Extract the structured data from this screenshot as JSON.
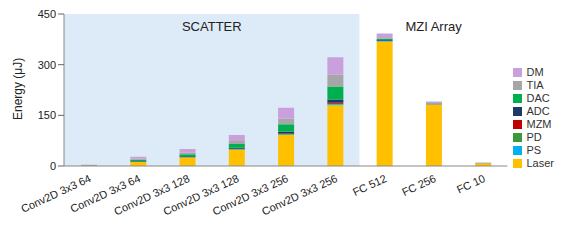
{
  "chart_data": {
    "type": "bar",
    "stacked": true,
    "ylabel": "Energy (μJ)",
    "categories": [
      "Conv2D 3x3 64",
      "Conv2D 3x3 64",
      "Conv2D 3x3 128",
      "Conv2D 3x3 128",
      "Conv2D 3x3 256",
      "Conv2D 3x3 256",
      "FC 512",
      "FC 256",
      "FC 10"
    ],
    "ylim": [
      0,
      450
    ],
    "yticks": [
      0,
      150,
      300,
      450
    ],
    "grid": false,
    "legend": "right",
    "regions": [
      {
        "label": "SCATTER",
        "from": 0,
        "to": 5,
        "color": "#dcebf7"
      },
      {
        "label": "MZI Array",
        "from": 6,
        "to": 8,
        "color": "#ffffff"
      }
    ],
    "series": [
      {
        "name": "Laser",
        "color": "#ffc000",
        "values": [
          1.5,
          12,
          25,
          48,
          92,
          180,
          368,
          182,
          8
        ]
      },
      {
        "name": "PS",
        "color": "#00b0f0",
        "values": [
          0.1,
          0.5,
          0.5,
          1,
          1.5,
          2,
          1,
          0.5,
          0.1
        ]
      },
      {
        "name": "PD",
        "color": "#3a9a3a",
        "values": [
          0.1,
          0.5,
          1,
          1,
          1.5,
          2,
          1,
          0.5,
          0.1
        ]
      },
      {
        "name": "MZM",
        "color": "#c00000",
        "values": [
          0.1,
          0.5,
          0.5,
          1,
          1.5,
          3,
          1,
          0.5,
          0.1
        ]
      },
      {
        "name": "ADC",
        "color": "#1f3864",
        "values": [
          0.2,
          1,
          1.5,
          3,
          5,
          10,
          2,
          1,
          0.2
        ]
      },
      {
        "name": "DAC",
        "color": "#00b050",
        "values": [
          0.3,
          4,
          6,
          11,
          22,
          38,
          4,
          1,
          0.3
        ]
      },
      {
        "name": "TIA",
        "color": "#a6a6a6",
        "values": [
          0.3,
          3,
          5,
          9,
          17,
          35,
          2,
          0.5,
          0.2
        ]
      },
      {
        "name": "DM",
        "color": "#c9a0dc",
        "values": [
          1,
          6,
          11,
          18,
          32,
          52,
          13,
          5,
          1
        ]
      }
    ]
  }
}
